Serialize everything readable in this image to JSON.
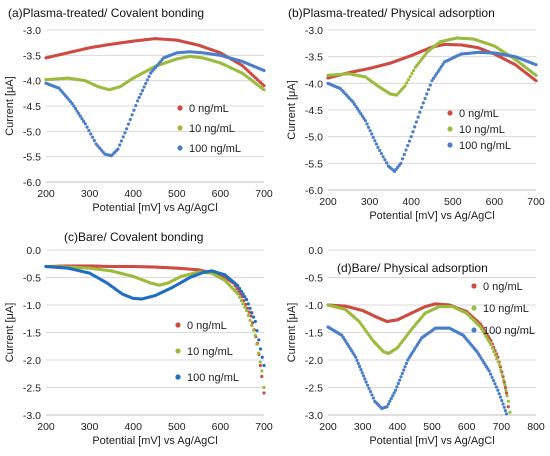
{
  "chart_data": [
    {
      "type": "scatter",
      "title": "(a)Plasma-treated/ Covalent bonding",
      "xlabel": "Potential [mV] vs Ag/AgCl",
      "ylabel": "Current [μA]",
      "xlim": [
        200,
        700
      ],
      "ylim": [
        -6.0,
        -3.0
      ],
      "xticks": [
        200,
        300,
        400,
        500,
        600,
        700
      ],
      "yticks": [
        -3.0,
        -3.5,
        -4.0,
        -4.5,
        -5.0,
        -5.5,
        -6.0
      ],
      "legend": "right",
      "series": [
        {
          "name": "0 ng/mL",
          "color": "#cc4c44",
          "points": [
            [
              200,
              -3.55
            ],
            [
              250,
              -3.45
            ],
            [
              300,
              -3.35
            ],
            [
              350,
              -3.28
            ],
            [
              400,
              -3.22
            ],
            [
              450,
              -3.17
            ],
            [
              500,
              -3.2
            ],
            [
              550,
              -3.3
            ],
            [
              600,
              -3.45
            ],
            [
              650,
              -3.7
            ],
            [
              700,
              -4.1
            ]
          ]
        },
        {
          "name": "10 ng/mL",
          "color": "#9bbb3c",
          "points": [
            [
              200,
              -3.98
            ],
            [
              250,
              -3.95
            ],
            [
              290,
              -4.0
            ],
            [
              320,
              -4.12
            ],
            [
              345,
              -4.18
            ],
            [
              370,
              -4.12
            ],
            [
              400,
              -3.95
            ],
            [
              450,
              -3.72
            ],
            [
              500,
              -3.57
            ],
            [
              530,
              -3.52
            ],
            [
              560,
              -3.55
            ],
            [
              600,
              -3.65
            ],
            [
              650,
              -3.85
            ],
            [
              700,
              -4.18
            ]
          ]
        },
        {
          "name": "100 ng/mL",
          "color": "#4a7fc8",
          "points": [
            [
              200,
              -4.05
            ],
            [
              230,
              -4.15
            ],
            [
              260,
              -4.45
            ],
            [
              290,
              -4.85
            ],
            [
              315,
              -5.25
            ],
            [
              335,
              -5.45
            ],
            [
              350,
              -5.48
            ],
            [
              365,
              -5.35
            ],
            [
              385,
              -4.95
            ],
            [
              410,
              -4.4
            ],
            [
              440,
              -3.85
            ],
            [
              470,
              -3.55
            ],
            [
              500,
              -3.45
            ],
            [
              530,
              -3.43
            ],
            [
              560,
              -3.45
            ],
            [
              600,
              -3.5
            ],
            [
              650,
              -3.62
            ],
            [
              700,
              -3.8
            ]
          ]
        }
      ]
    },
    {
      "type": "scatter",
      "title": "(b)Plasma-treated/ Physical adsorption",
      "xlabel": "Potential [mV] vs Ag/AgCl",
      "ylabel": "Current [μA]",
      "xlim": [
        200,
        700
      ],
      "ylim": [
        -6.0,
        -3.0
      ],
      "xticks": [
        200,
        300,
        400,
        500,
        600,
        700
      ],
      "yticks": [
        -3.0,
        -3.5,
        -4.0,
        -4.5,
        -5.0,
        -5.5,
        -6.0
      ],
      "legend": "right",
      "series": [
        {
          "name": "0 ng/mL",
          "color": "#cc4c44",
          "points": [
            [
              200,
              -3.9
            ],
            [
              250,
              -3.8
            ],
            [
              300,
              -3.72
            ],
            [
              350,
              -3.62
            ],
            [
              400,
              -3.48
            ],
            [
              450,
              -3.32
            ],
            [
              480,
              -3.27
            ],
            [
              520,
              -3.28
            ],
            [
              560,
              -3.33
            ],
            [
              600,
              -3.45
            ],
            [
              650,
              -3.65
            ],
            [
              700,
              -3.95
            ]
          ]
        },
        {
          "name": "10 ng/mL",
          "color": "#9bbb3c",
          "points": [
            [
              200,
              -3.85
            ],
            [
              250,
              -3.82
            ],
            [
              290,
              -3.88
            ],
            [
              320,
              -4.05
            ],
            [
              350,
              -4.2
            ],
            [
              365,
              -4.22
            ],
            [
              385,
              -4.05
            ],
            [
              410,
              -3.7
            ],
            [
              440,
              -3.4
            ],
            [
              470,
              -3.22
            ],
            [
              510,
              -3.15
            ],
            [
              550,
              -3.17
            ],
            [
              600,
              -3.3
            ],
            [
              650,
              -3.55
            ],
            [
              700,
              -3.85
            ]
          ]
        },
        {
          "name": "100 ng/mL",
          "color": "#4a7fc8",
          "points": [
            [
              200,
              -4.0
            ],
            [
              230,
              -4.1
            ],
            [
              260,
              -4.35
            ],
            [
              290,
              -4.7
            ],
            [
              320,
              -5.2
            ],
            [
              345,
              -5.55
            ],
            [
              360,
              -5.65
            ],
            [
              375,
              -5.5
            ],
            [
              400,
              -5.0
            ],
            [
              425,
              -4.45
            ],
            [
              450,
              -3.95
            ],
            [
              480,
              -3.6
            ],
            [
              520,
              -3.45
            ],
            [
              560,
              -3.42
            ],
            [
              600,
              -3.43
            ],
            [
              650,
              -3.5
            ],
            [
              700,
              -3.65
            ]
          ]
        }
      ]
    },
    {
      "type": "scatter",
      "title": "(c)Bare/ Covalent bonding",
      "xlabel": "Potential [mV] vs Ag/AgCl",
      "ylabel": "Current [μA]",
      "xlim": [
        200,
        700
      ],
      "ylim": [
        -3.0,
        0.0
      ],
      "xticks": [
        200,
        300,
        400,
        500,
        600,
        700
      ],
      "yticks": [
        0.0,
        -0.5,
        -1.0,
        -1.5,
        -2.0,
        -2.5,
        -3.0
      ],
      "legend": "right",
      "series": [
        {
          "name": "0 ng/mL",
          "color": "#cc4c44",
          "points": [
            [
              200,
              -0.3
            ],
            [
              250,
              -0.29
            ],
            [
              300,
              -0.29
            ],
            [
              350,
              -0.3
            ],
            [
              400,
              -0.3
            ],
            [
              450,
              -0.31
            ],
            [
              500,
              -0.33
            ],
            [
              550,
              -0.36
            ],
            [
              600,
              -0.45
            ],
            [
              630,
              -0.6
            ],
            [
              650,
              -0.85
            ],
            [
              670,
              -1.2
            ],
            [
              685,
              -1.7
            ],
            [
              695,
              -2.3
            ],
            [
              700,
              -2.6
            ]
          ]
        },
        {
          "name": "10 ng/mL",
          "color": "#9bbb3c",
          "points": [
            [
              200,
              -0.3
            ],
            [
              250,
              -0.31
            ],
            [
              300,
              -0.33
            ],
            [
              350,
              -0.38
            ],
            [
              400,
              -0.48
            ],
            [
              440,
              -0.6
            ],
            [
              460,
              -0.64
            ],
            [
              480,
              -0.6
            ],
            [
              510,
              -0.48
            ],
            [
              550,
              -0.4
            ],
            [
              580,
              -0.42
            ],
            [
              610,
              -0.55
            ],
            [
              640,
              -0.8
            ],
            [
              660,
              -1.1
            ],
            [
              680,
              -1.55
            ],
            [
              695,
              -2.2
            ],
            [
              700,
              -2.5
            ]
          ]
        },
        {
          "name": "100 ng/mL",
          "color": "#1f6ec0",
          "points": [
            [
              200,
              -0.3
            ],
            [
              250,
              -0.33
            ],
            [
              300,
              -0.42
            ],
            [
              340,
              -0.6
            ],
            [
              375,
              -0.8
            ],
            [
              400,
              -0.88
            ],
            [
              420,
              -0.89
            ],
            [
              450,
              -0.83
            ],
            [
              490,
              -0.68
            ],
            [
              530,
              -0.5
            ],
            [
              560,
              -0.41
            ],
            [
              580,
              -0.38
            ],
            [
              610,
              -0.45
            ],
            [
              640,
              -0.65
            ],
            [
              660,
              -0.9
            ],
            [
              680,
              -1.3
            ],
            [
              692,
              -1.8
            ],
            [
              700,
              -2.1
            ]
          ]
        }
      ]
    },
    {
      "type": "scatter",
      "title": "(d)Bare/ Physical adsorption",
      "xlabel": "Potential [mV] vs Ag/AgCl",
      "ylabel": "Current [μA]",
      "xlim": [
        200,
        800
      ],
      "ylim": [
        -3.0,
        0.0
      ],
      "xticks": [
        200,
        300,
        400,
        500,
        600,
        700,
        800
      ],
      "yticks": [
        0.0,
        -0.5,
        -1.0,
        -1.5,
        -2.0,
        -2.5,
        -3.0
      ],
      "legend": "top-right",
      "series": [
        {
          "name": "0 ng/mL",
          "color": "#cc4c44",
          "points": [
            [
              200,
              -1.0
            ],
            [
              250,
              -1.02
            ],
            [
              300,
              -1.1
            ],
            [
              340,
              -1.22
            ],
            [
              370,
              -1.3
            ],
            [
              400,
              -1.27
            ],
            [
              440,
              -1.15
            ],
            [
              480,
              -1.03
            ],
            [
              510,
              -0.98
            ],
            [
              550,
              -1.0
            ],
            [
              600,
              -1.12
            ],
            [
              640,
              -1.35
            ],
            [
              670,
              -1.65
            ],
            [
              690,
              -1.95
            ],
            [
              705,
              -2.3
            ],
            [
              715,
              -2.6
            ],
            [
              720,
              -2.85
            ]
          ]
        },
        {
          "name": "10 ng/mL",
          "color": "#9bbb3c",
          "points": [
            [
              200,
              -1.0
            ],
            [
              250,
              -1.08
            ],
            [
              290,
              -1.3
            ],
            [
              330,
              -1.65
            ],
            [
              360,
              -1.85
            ],
            [
              375,
              -1.88
            ],
            [
              400,
              -1.78
            ],
            [
              440,
              -1.45
            ],
            [
              480,
              -1.15
            ],
            [
              520,
              -1.03
            ],
            [
              560,
              -1.03
            ],
            [
              600,
              -1.15
            ],
            [
              640,
              -1.4
            ],
            [
              670,
              -1.72
            ],
            [
              695,
              -2.1
            ],
            [
              710,
              -2.45
            ],
            [
              720,
              -2.75
            ],
            [
              725,
              -2.95
            ]
          ]
        },
        {
          "name": "100 ng/mL",
          "color": "#4a7fc8",
          "points": [
            [
              200,
              -1.4
            ],
            [
              240,
              -1.55
            ],
            [
              280,
              -1.95
            ],
            [
              310,
              -2.4
            ],
            [
              335,
              -2.75
            ],
            [
              355,
              -2.88
            ],
            [
              370,
              -2.85
            ],
            [
              395,
              -2.55
            ],
            [
              430,
              -2.0
            ],
            [
              470,
              -1.6
            ],
            [
              510,
              -1.42
            ],
            [
              550,
              -1.42
            ],
            [
              590,
              -1.55
            ],
            [
              630,
              -1.85
            ],
            [
              665,
              -2.2
            ],
            [
              690,
              -2.55
            ],
            [
              705,
              -2.8
            ],
            [
              715,
              -2.98
            ]
          ]
        }
      ]
    }
  ]
}
